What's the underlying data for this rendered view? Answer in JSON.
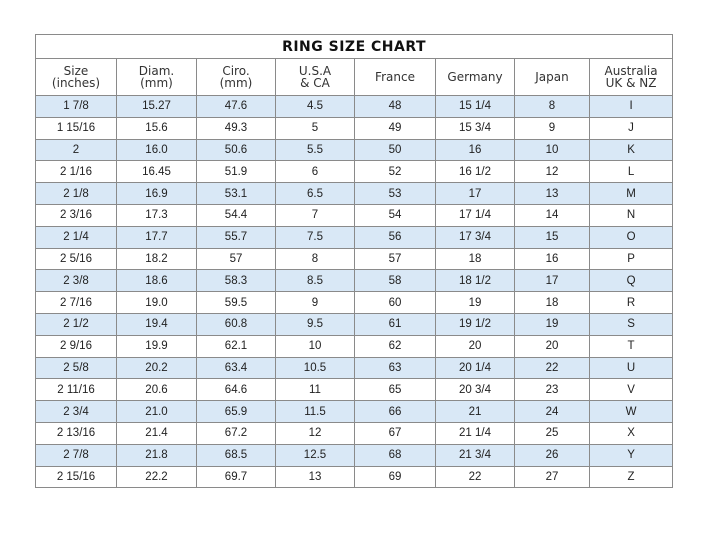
{
  "title": "RING SIZE CHART",
  "columns": [
    [
      "Size",
      "(inches)"
    ],
    [
      "Diam.",
      "(mm)"
    ],
    [
      "Ciro.",
      "(mm)"
    ],
    [
      "U.S.A",
      "& CA"
    ],
    [
      "France"
    ],
    [
      "Germany"
    ],
    [
      "Japan"
    ],
    [
      "Australia",
      "UK & NZ"
    ]
  ],
  "row_highlight_color": "#d9e8f6",
  "rows": [
    [
      "1 7/8",
      "15.27",
      "47.6",
      "4.5",
      "48",
      "15 1/4",
      "8",
      "I"
    ],
    [
      "1 15/16",
      "15.6",
      "49.3",
      "5",
      "49",
      "15 3/4",
      "9",
      "J"
    ],
    [
      "2",
      "16.0",
      "50.6",
      "5.5",
      "50",
      "16",
      "10",
      "K"
    ],
    [
      "2 1/16",
      "16.45",
      "51.9",
      "6",
      "52",
      "16 1/2",
      "12",
      "L"
    ],
    [
      "2 1/8",
      "16.9",
      "53.1",
      "6.5",
      "53",
      "17",
      "13",
      "M"
    ],
    [
      "2 3/16",
      "17.3",
      "54.4",
      "7",
      "54",
      "17 1/4",
      "14",
      "N"
    ],
    [
      "2 1/4",
      "17.7",
      "55.7",
      "7.5",
      "56",
      "17 3/4",
      "15",
      "O"
    ],
    [
      "2 5/16",
      "18.2",
      "57",
      "8",
      "57",
      "18",
      "16",
      "P"
    ],
    [
      "2 3/8",
      "18.6",
      "58.3",
      "8.5",
      "58",
      "18 1/2",
      "17",
      "Q"
    ],
    [
      "2 7/16",
      "19.0",
      "59.5",
      "9",
      "60",
      "19",
      "18",
      "R"
    ],
    [
      "2 1/2",
      "19.4",
      "60.8",
      "9.5",
      "61",
      "19 1/2",
      "19",
      "S"
    ],
    [
      "2 9/16",
      "19.9",
      "62.1",
      "10",
      "62",
      "20",
      "20",
      "T"
    ],
    [
      "2 5/8",
      "20.2",
      "63.4",
      "10.5",
      "63",
      "20 1/4",
      "22",
      "U"
    ],
    [
      "2 11/16",
      "20.6",
      "64.6",
      "11",
      "65",
      "20 3/4",
      "23",
      "V"
    ],
    [
      "2 3/4",
      "21.0",
      "65.9",
      "11.5",
      "66",
      "21",
      "24",
      "W"
    ],
    [
      "2 13/16",
      "21.4",
      "67.2",
      "12",
      "67",
      "21 1/4",
      "25",
      "X"
    ],
    [
      "2 7/8",
      "21.8",
      "68.5",
      "12.5",
      "68",
      "21 3/4",
      "26",
      "Y"
    ],
    [
      "2 15/16",
      "22.2",
      "69.7",
      "13",
      "69",
      "22",
      "27",
      "Z"
    ]
  ]
}
